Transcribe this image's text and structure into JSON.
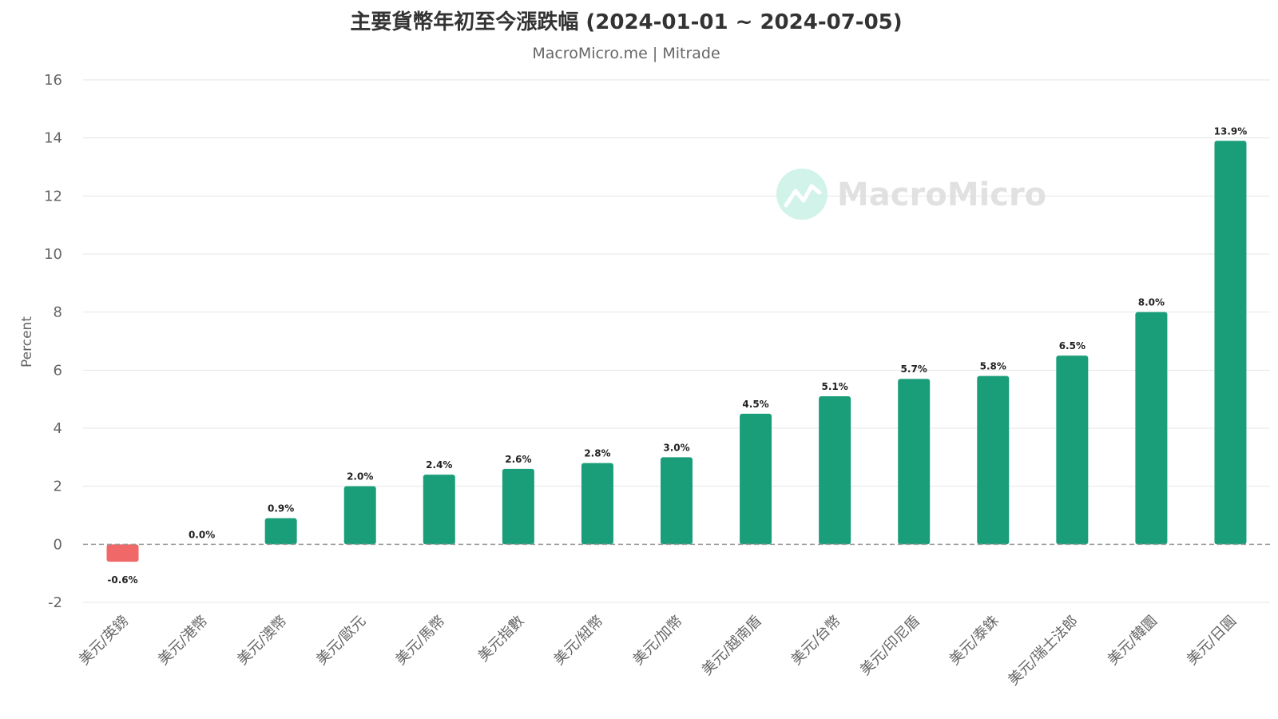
{
  "chart_data": {
    "type": "bar",
    "title": "主要貨幣年初至今漲跌幅 (2024-01-01 ~ 2024-07-05)",
    "subtitle": "MacroMicro.me | Mitrade",
    "ylabel": "Percent",
    "xlabel": "",
    "ylim": [
      -2,
      16
    ],
    "yticks": [
      -2,
      0,
      2,
      4,
      6,
      8,
      10,
      12,
      14,
      16
    ],
    "grid": true,
    "legend": "none",
    "categories": [
      "美元/英鎊",
      "美元/港幣",
      "美元/澳幣",
      "美元/歐元",
      "美元/馬幣",
      "美元指數",
      "美元/紐幣",
      "美元/加幣",
      "美元/越南盾",
      "美元/台幣",
      "美元/印尼盾",
      "美元/泰銖",
      "美元/瑞士法郎",
      "美元/韓圜",
      "美元/日圓"
    ],
    "values": [
      -0.6,
      0.0,
      0.9,
      2.0,
      2.4,
      2.6,
      2.8,
      3.0,
      4.5,
      5.1,
      5.7,
      5.8,
      6.5,
      8.0,
      13.9
    ],
    "data_labels": [
      "-0.6%",
      "0.0%",
      "0.9%",
      "2.0%",
      "2.4%",
      "2.6%",
      "2.8%",
      "3.0%",
      "4.5%",
      "5.1%",
      "5.7%",
      "5.8%",
      "6.5%",
      "8.0%",
      "13.9%"
    ],
    "colors": {
      "positive": "#1a9e7a",
      "negative": "#f06868",
      "grid": "#e6e6e6",
      "zero_line": "#999999"
    }
  },
  "watermark": {
    "text": "MacroMicro",
    "icon": "chart-trend-icon",
    "color": "#c9f1e6"
  }
}
